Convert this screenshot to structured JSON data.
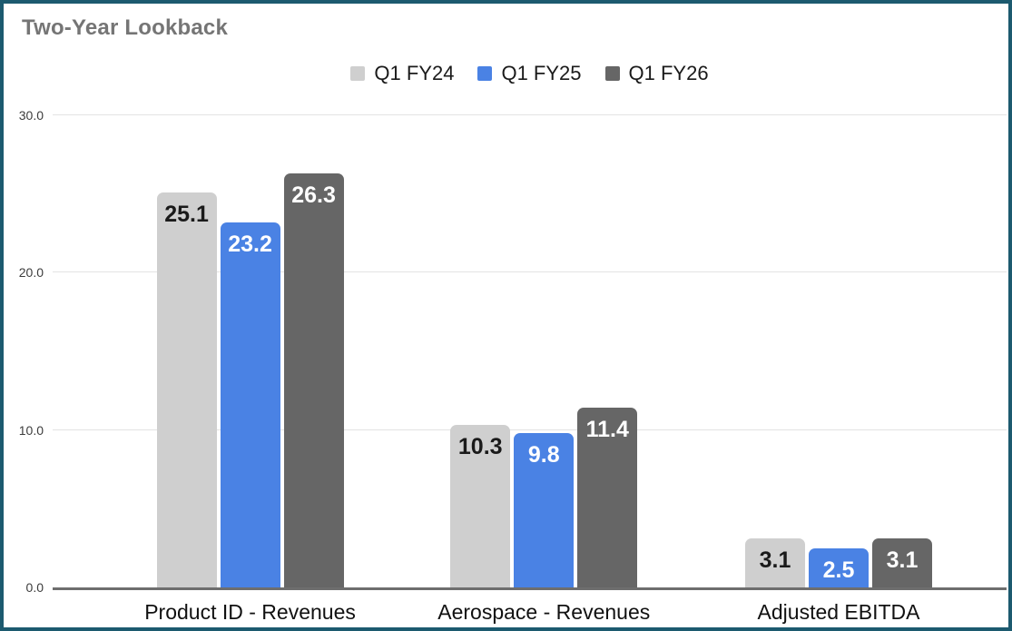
{
  "colors": {
    "frame_border": "#1c5a6f",
    "background": "#ffffff",
    "gridline": "#e3e3e3",
    "axis_line": "#6e6e6e",
    "title_text": "#757575",
    "tick_text": "#3c3c3c",
    "category_text": "#111111"
  },
  "chart_data": {
    "type": "bar",
    "title": "Two-Year Lookback",
    "categories": [
      "Product ID - Revenues",
      "Aerospace - Revenues",
      "Adjusted EBITDA"
    ],
    "series": [
      {
        "name": "Q1 FY24",
        "color": "#cfcfcf",
        "label_color": "#1a1a1a",
        "values": [
          25.1,
          10.3,
          3.1
        ]
      },
      {
        "name": "Q1 FY25",
        "color": "#4a82e4",
        "label_color": "#ffffff",
        "values": [
          23.2,
          9.8,
          2.5
        ]
      },
      {
        "name": "Q1 FY26",
        "color": "#666666",
        "label_color": "#ffffff",
        "values": [
          26.3,
          11.4,
          3.1
        ]
      }
    ],
    "yticks": [
      {
        "value": 0,
        "label": "0.0"
      },
      {
        "value": 10,
        "label": "10.0"
      },
      {
        "value": 20,
        "label": "20.0"
      },
      {
        "value": 30,
        "label": "30.0"
      }
    ],
    "ylim": [
      0,
      30
    ],
    "grid": true,
    "legend_position": "top",
    "value_label_decimals": 1
  }
}
